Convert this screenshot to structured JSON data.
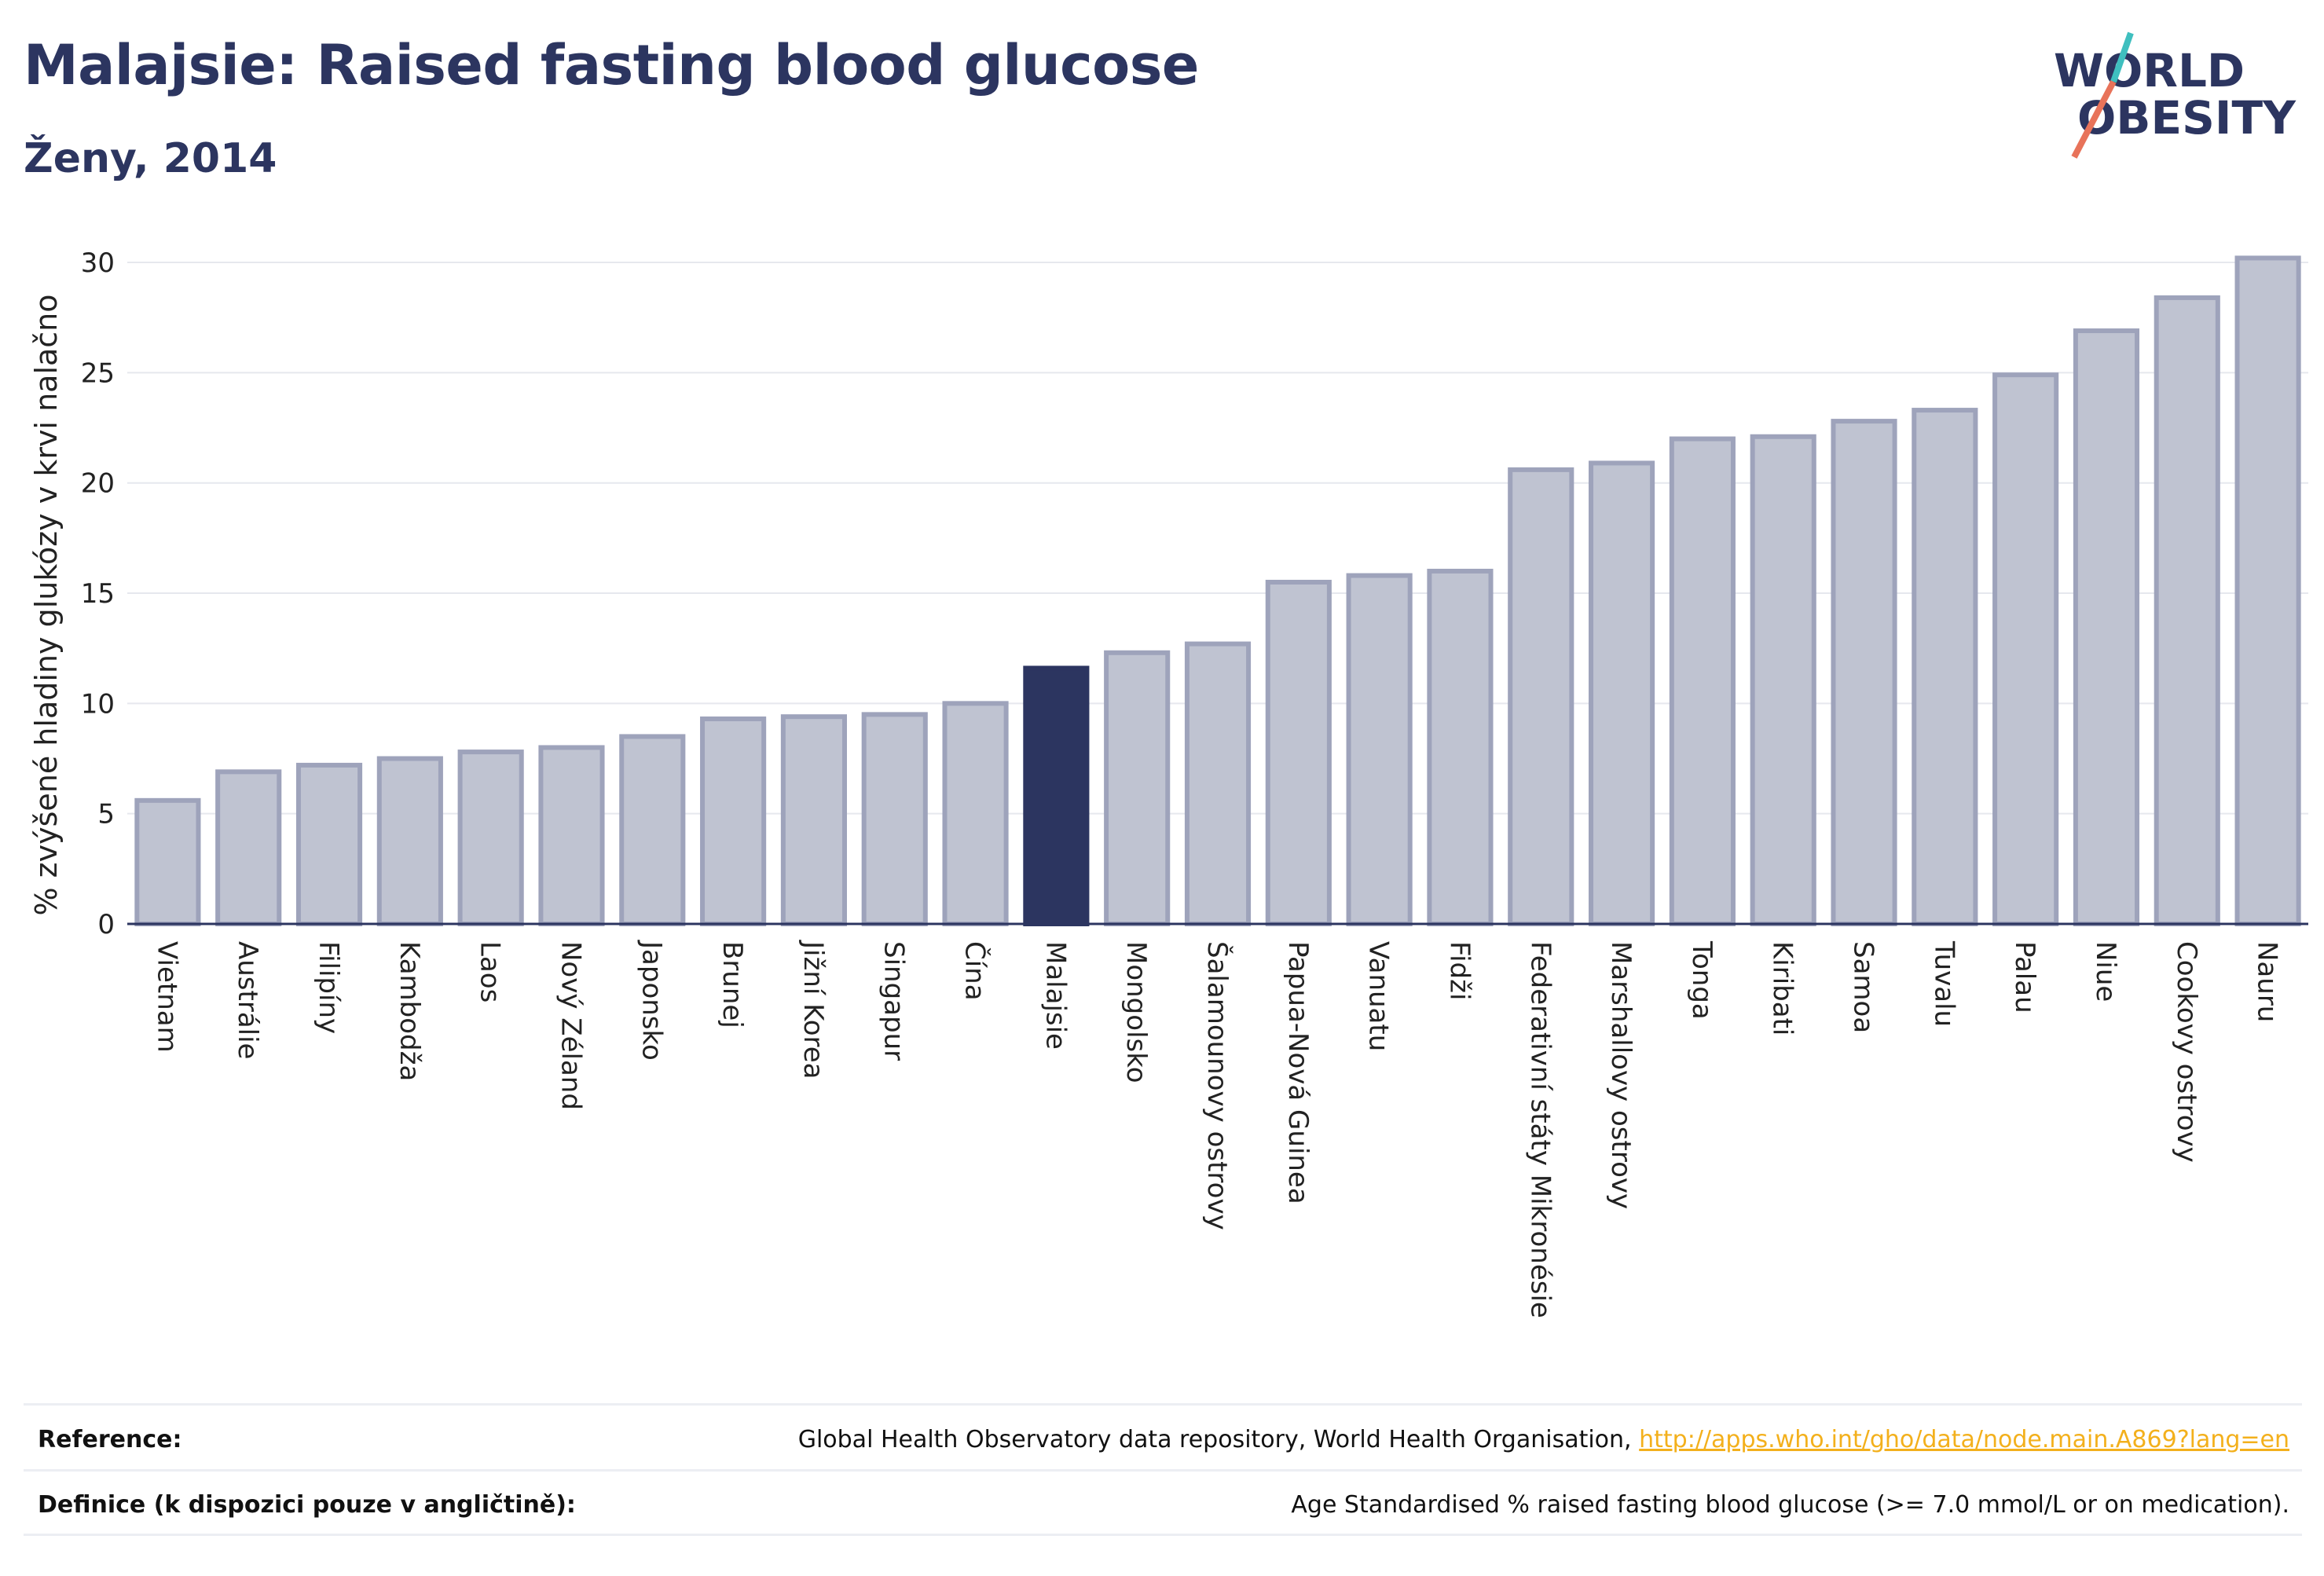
{
  "title": "Malajsie: Raised fasting blood glucose",
  "subtitle": "Ženy, 2014",
  "logo": {
    "line1": "WORLD",
    "line2": "OBESITY",
    "colors": {
      "text": "#2c3560",
      "accent_teal": "#3fbfbf",
      "accent_coral": "#e8735a"
    }
  },
  "chart_data": {
    "type": "bar",
    "title": "Malajsie: Raised fasting blood glucose",
    "subtitle": "Ženy, 2014",
    "xlabel": "",
    "ylabel": "% zvýšené hladiny glukózy v krvi nalačno",
    "ylim": [
      0,
      30.5
    ],
    "yticks": [
      0,
      5,
      10,
      15,
      20,
      25,
      30
    ],
    "grid": true,
    "highlight": "Malajsie",
    "colors": {
      "bar": "#bfc3d1",
      "bar_border": "#9ea3bb",
      "highlight": "#2c3560",
      "grid": "#e6e8ee",
      "axis": "#2c3560"
    },
    "categories": [
      "Vietnam",
      "Austrálie",
      "Filipíny",
      "Kambodža",
      "Laos",
      "Nový Zéland",
      "Japonsko",
      "Brunej",
      "Jižní Korea",
      "Singapur",
      "Čína",
      "Malajsie",
      "Mongolsko",
      "Šalamounovy ostrovy",
      "Papua-Nová Guinea",
      "Vanuatu",
      "Fidži",
      "Federativní státy Mikronésie",
      "Marshallovy ostrovy",
      "Tonga",
      "Kiribati",
      "Samoa",
      "Tuvalu",
      "Palau",
      "Niue",
      "Cookovy ostrovy",
      "Nauru"
    ],
    "values": [
      5.6,
      6.9,
      7.2,
      7.5,
      7.8,
      8.0,
      8.5,
      9.3,
      9.4,
      9.5,
      10.0,
      11.6,
      12.3,
      12.7,
      15.5,
      15.8,
      16.0,
      20.6,
      20.9,
      22.0,
      22.1,
      22.8,
      23.3,
      24.9,
      26.9,
      28.4,
      30.2
    ]
  },
  "footer": {
    "reference_label": "Reference:",
    "reference_text": "Global Health Observatory data repository, World Health Organisation,",
    "reference_link": "http://apps.who.int/gho/data/node.main.A869?lang=en",
    "definition_label": "Definice (k dispozici pouze v angličtině):",
    "definition_text": "Age Standardised % raised fasting blood glucose (>= 7.0 mmol/L or on medication)."
  }
}
